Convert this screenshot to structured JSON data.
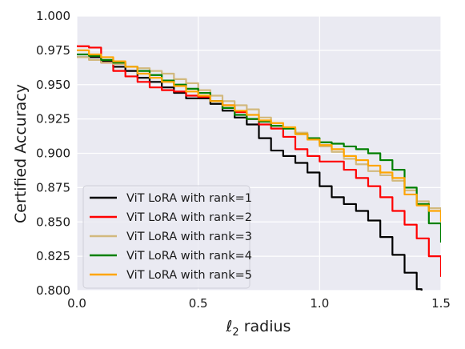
{
  "chart_data": {
    "type": "line",
    "title": "",
    "xlabel_main": "ℓ",
    "xlabel_sub": "2",
    "xlabel_rest": " radius",
    "ylabel": "Certified Accuracy",
    "xlim": [
      0.0,
      1.5
    ],
    "ylim": [
      0.8,
      1.0
    ],
    "x_ticks": [
      0.0,
      0.5,
      1.0,
      1.5
    ],
    "x_tick_labels": [
      "0.0",
      "0.5",
      "1.0",
      "1.5"
    ],
    "y_ticks": [
      0.8,
      0.825,
      0.85,
      0.875,
      0.9,
      0.925,
      0.95,
      0.975,
      1.0
    ],
    "y_tick_labels": [
      "0.800",
      "0.825",
      "0.850",
      "0.875",
      "0.900",
      "0.925",
      "0.950",
      "0.975",
      "1.000"
    ],
    "grid": true,
    "legend_position": "lower-left",
    "style": {
      "background": "#EAEAF2",
      "grid_color": "#FFFFFF"
    },
    "series": [
      {
        "name": "ViT LoRA with rank=1",
        "color": "#000000",
        "x": [
          0.0,
          0.05,
          0.1,
          0.15,
          0.2,
          0.25,
          0.3,
          0.35,
          0.4,
          0.45,
          0.5,
          0.55,
          0.6,
          0.65,
          0.7,
          0.75,
          0.8,
          0.85,
          0.9,
          0.95,
          1.0,
          1.05,
          1.1,
          1.15,
          1.2,
          1.25,
          1.3,
          1.35,
          1.4,
          1.42
        ],
        "y": [
          0.97,
          0.97,
          0.967,
          0.963,
          0.96,
          0.955,
          0.952,
          0.948,
          0.944,
          0.94,
          0.94,
          0.936,
          0.931,
          0.926,
          0.921,
          0.911,
          0.902,
          0.898,
          0.893,
          0.886,
          0.876,
          0.868,
          0.863,
          0.858,
          0.851,
          0.839,
          0.826,
          0.813,
          0.801,
          0.799
        ]
      },
      {
        "name": "ViT LoRA with rank=2",
        "color": "#FF0000",
        "x": [
          0.0,
          0.05,
          0.1,
          0.15,
          0.2,
          0.25,
          0.3,
          0.35,
          0.4,
          0.45,
          0.5,
          0.55,
          0.6,
          0.65,
          0.7,
          0.75,
          0.8,
          0.85,
          0.9,
          0.95,
          1.0,
          1.05,
          1.1,
          1.15,
          1.2,
          1.25,
          1.3,
          1.35,
          1.4,
          1.45,
          1.5
        ],
        "y": [
          0.978,
          0.977,
          0.966,
          0.96,
          0.956,
          0.952,
          0.948,
          0.946,
          0.945,
          0.942,
          0.941,
          0.938,
          0.935,
          0.93,
          0.925,
          0.921,
          0.918,
          0.912,
          0.903,
          0.898,
          0.894,
          0.894,
          0.888,
          0.882,
          0.876,
          0.868,
          0.858,
          0.848,
          0.838,
          0.825,
          0.81
        ]
      },
      {
        "name": "ViT LoRA with rank=3",
        "color": "#D2B97E",
        "x": [
          0.0,
          0.05,
          0.1,
          0.15,
          0.2,
          0.25,
          0.3,
          0.35,
          0.4,
          0.45,
          0.5,
          0.55,
          0.6,
          0.65,
          0.7,
          0.75,
          0.8,
          0.85,
          0.9,
          0.95,
          1.0,
          1.05,
          1.1,
          1.15,
          1.2,
          1.25,
          1.3,
          1.35,
          1.4,
          1.45,
          1.5
        ],
        "y": [
          0.97,
          0.968,
          0.966,
          0.965,
          0.963,
          0.962,
          0.96,
          0.958,
          0.954,
          0.951,
          0.946,
          0.942,
          0.938,
          0.935,
          0.932,
          0.926,
          0.92,
          0.918,
          0.915,
          0.91,
          0.905,
          0.901,
          0.896,
          0.892,
          0.887,
          0.884,
          0.88,
          0.873,
          0.865,
          0.86,
          0.851
        ]
      },
      {
        "name": "ViT LoRA with rank=4",
        "color": "#008000",
        "x": [
          0.0,
          0.05,
          0.1,
          0.15,
          0.2,
          0.25,
          0.3,
          0.35,
          0.4,
          0.45,
          0.5,
          0.55,
          0.6,
          0.65,
          0.7,
          0.75,
          0.8,
          0.85,
          0.9,
          0.95,
          1.0,
          1.05,
          1.1,
          1.15,
          1.2,
          1.25,
          1.3,
          1.35,
          1.4,
          1.45,
          1.5
        ],
        "y": [
          0.972,
          0.971,
          0.968,
          0.966,
          0.963,
          0.96,
          0.957,
          0.953,
          0.95,
          0.947,
          0.944,
          0.938,
          0.933,
          0.928,
          0.925,
          0.923,
          0.92,
          0.918,
          0.914,
          0.911,
          0.908,
          0.907,
          0.905,
          0.903,
          0.9,
          0.895,
          0.888,
          0.875,
          0.863,
          0.849,
          0.835
        ]
      },
      {
        "name": "ViT LoRA with rank=5",
        "color": "#FFA500",
        "x": [
          0.0,
          0.05,
          0.1,
          0.15,
          0.2,
          0.25,
          0.3,
          0.35,
          0.4,
          0.45,
          0.5,
          0.55,
          0.6,
          0.65,
          0.7,
          0.75,
          0.8,
          0.85,
          0.9,
          0.95,
          1.0,
          1.05,
          1.1,
          1.15,
          1.2,
          1.25,
          1.3,
          1.35,
          1.4,
          1.45,
          1.5
        ],
        "y": [
          0.975,
          0.972,
          0.97,
          0.967,
          0.963,
          0.958,
          0.955,
          0.952,
          0.949,
          0.945,
          0.942,
          0.938,
          0.935,
          0.931,
          0.928,
          0.924,
          0.922,
          0.919,
          0.914,
          0.91,
          0.906,
          0.903,
          0.898,
          0.895,
          0.891,
          0.886,
          0.882,
          0.87,
          0.862,
          0.858,
          0.85
        ]
      }
    ]
  }
}
